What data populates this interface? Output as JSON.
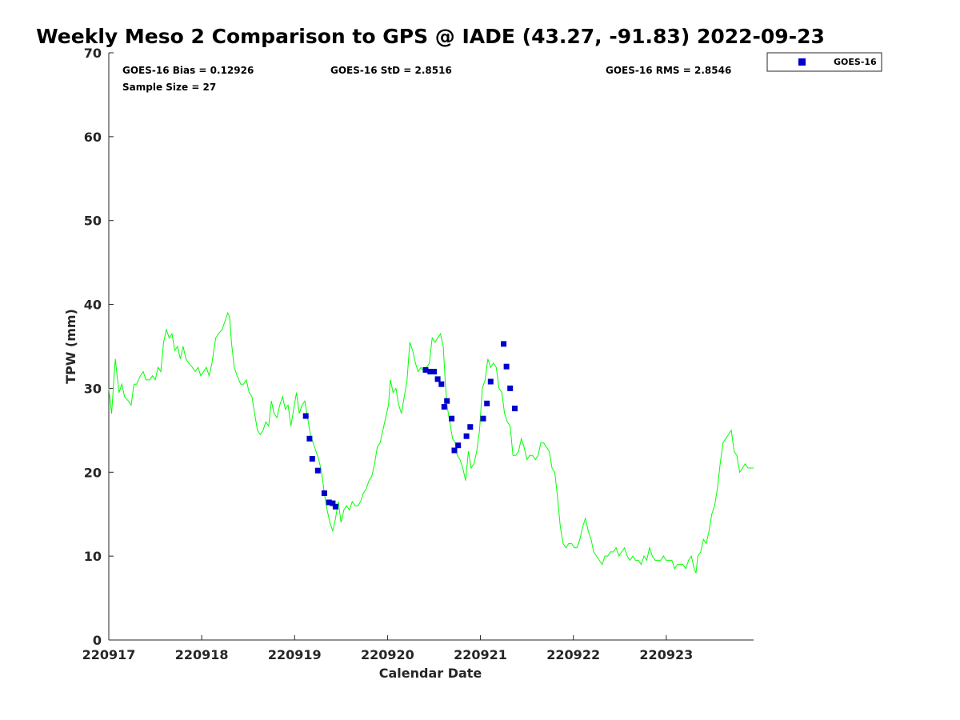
{
  "chart_data": {
    "type": "scatter",
    "title": "Weekly Meso 2 Comparison to GPS @ IADE (43.27, -91.83) 2022-09-23",
    "xlabel": "Calendar Date",
    "ylabel": "TPW (mm)",
    "x_tick_labels": [
      "220917",
      "220918",
      "220919",
      "220920",
      "220921",
      "220922",
      "220923"
    ],
    "xlim": [
      0,
      6.94
    ],
    "ylim": [
      0,
      70
    ],
    "y_ticks": [
      0,
      10,
      20,
      30,
      40,
      50,
      60,
      70
    ],
    "grid": false,
    "legend_position": "top-right",
    "stats": [
      {
        "label": "GOES-16 Bias = 0.12926"
      },
      {
        "label": "GOES-16 StD = 2.8516"
      },
      {
        "label": "GOES-16 RMS = 2.8546"
      },
      {
        "label": "Sample Size = 27"
      }
    ],
    "series": [
      {
        "name": "GPS",
        "kind": "line",
        "color": "#00ff00",
        "points": [
          [
            0.0,
            30.0
          ],
          [
            0.03,
            27.0
          ],
          [
            0.07,
            33.5
          ],
          [
            0.11,
            29.5
          ],
          [
            0.14,
            30.5
          ],
          [
            0.17,
            29.0
          ],
          [
            0.21,
            28.5
          ],
          [
            0.24,
            28.0
          ],
          [
            0.27,
            30.5
          ],
          [
            0.3,
            30.5
          ],
          [
            0.34,
            31.5
          ],
          [
            0.37,
            32.0
          ],
          [
            0.4,
            31.0
          ],
          [
            0.44,
            31.0
          ],
          [
            0.47,
            31.5
          ],
          [
            0.5,
            31.0
          ],
          [
            0.53,
            32.5
          ],
          [
            0.56,
            32.0
          ],
          [
            0.59,
            35.5
          ],
          [
            0.62,
            37.0
          ],
          [
            0.65,
            36.0
          ],
          [
            0.68,
            36.5
          ],
          [
            0.71,
            34.5
          ],
          [
            0.74,
            35.0
          ],
          [
            0.77,
            33.5
          ],
          [
            0.8,
            35.0
          ],
          [
            0.83,
            33.5
          ],
          [
            0.86,
            33.0
          ],
          [
            0.9,
            32.5
          ],
          [
            0.93,
            32.0
          ],
          [
            0.96,
            32.5
          ],
          [
            0.99,
            31.5
          ],
          [
            1.02,
            32.0
          ],
          [
            1.05,
            32.5
          ],
          [
            1.08,
            31.5
          ],
          [
            1.11,
            33.0
          ],
          [
            1.15,
            36.0
          ],
          [
            1.18,
            36.5
          ],
          [
            1.22,
            37.0
          ],
          [
            1.25,
            38.0
          ],
          [
            1.28,
            39.0
          ],
          [
            1.3,
            38.5
          ],
          [
            1.32,
            35.5
          ],
          [
            1.35,
            32.5
          ],
          [
            1.38,
            31.5
          ],
          [
            1.42,
            30.5
          ],
          [
            1.45,
            30.5
          ],
          [
            1.48,
            31.0
          ],
          [
            1.51,
            29.5
          ],
          [
            1.54,
            29.0
          ],
          [
            1.57,
            27.0
          ],
          [
            1.6,
            25.0
          ],
          [
            1.63,
            24.5
          ],
          [
            1.66,
            25.0
          ],
          [
            1.69,
            26.0
          ],
          [
            1.72,
            25.5
          ],
          [
            1.75,
            28.5
          ],
          [
            1.78,
            27.0
          ],
          [
            1.81,
            26.5
          ],
          [
            1.84,
            28.0
          ],
          [
            1.87,
            29.0
          ],
          [
            1.9,
            27.5
          ],
          [
            1.93,
            28.0
          ],
          [
            1.96,
            25.5
          ],
          [
            1.99,
            27.5
          ],
          [
            2.02,
            29.5
          ],
          [
            2.05,
            27.0
          ],
          [
            2.08,
            28.0
          ],
          [
            2.11,
            28.5
          ],
          [
            2.14,
            26.5
          ],
          [
            2.17,
            24.5
          ],
          [
            2.2,
            23.5
          ],
          [
            2.23,
            22.5
          ],
          [
            2.26,
            21.5
          ],
          [
            2.29,
            20.0
          ],
          [
            2.32,
            17.5
          ],
          [
            2.35,
            15.5
          ],
          [
            2.38,
            14.0
          ],
          [
            2.41,
            13.0
          ],
          [
            2.44,
            14.5
          ],
          [
            2.47,
            16.5
          ],
          [
            2.5,
            14.0
          ],
          [
            2.53,
            15.5
          ],
          [
            2.56,
            16.0
          ],
          [
            2.59,
            15.5
          ],
          [
            2.62,
            16.5
          ],
          [
            2.65,
            16.0
          ],
          [
            2.68,
            16.0
          ],
          [
            2.71,
            16.5
          ],
          [
            2.74,
            17.5
          ],
          [
            2.77,
            18.0
          ],
          [
            2.8,
            19.0
          ],
          [
            2.83,
            19.5
          ],
          [
            2.86,
            21.0
          ],
          [
            2.89,
            23.0
          ],
          [
            2.92,
            23.5
          ],
          [
            2.95,
            25.0
          ],
          [
            2.98,
            26.5
          ],
          [
            3.01,
            28.0
          ],
          [
            3.03,
            31.0
          ],
          [
            3.06,
            29.5
          ],
          [
            3.09,
            30.0
          ],
          [
            3.12,
            28.0
          ],
          [
            3.15,
            27.0
          ],
          [
            3.18,
            29.0
          ],
          [
            3.21,
            31.0
          ],
          [
            3.24,
            35.5
          ],
          [
            3.27,
            34.5
          ],
          [
            3.3,
            33.0
          ],
          [
            3.33,
            32.0
          ],
          [
            3.36,
            32.5
          ],
          [
            3.39,
            32.0
          ],
          [
            3.42,
            32.5
          ],
          [
            3.45,
            33.0
          ],
          [
            3.48,
            36.0
          ],
          [
            3.51,
            35.5
          ],
          [
            3.54,
            36.0
          ],
          [
            3.57,
            36.5
          ],
          [
            3.6,
            35.0
          ],
          [
            3.62,
            31.0
          ],
          [
            3.64,
            28.0
          ],
          [
            3.67,
            26.0
          ],
          [
            3.7,
            24.0
          ],
          [
            3.73,
            23.5
          ],
          [
            3.75,
            22.0
          ],
          [
            3.78,
            21.5
          ],
          [
            3.81,
            20.5
          ],
          [
            3.84,
            19.0
          ],
          [
            3.87,
            22.5
          ],
          [
            3.9,
            20.5
          ],
          [
            3.93,
            21.0
          ],
          [
            3.96,
            22.5
          ],
          [
            3.99,
            25.0
          ],
          [
            4.02,
            30.0
          ],
          [
            4.05,
            31.0
          ],
          [
            4.08,
            33.5
          ],
          [
            4.11,
            32.5
          ],
          [
            4.14,
            33.0
          ],
          [
            4.17,
            32.5
          ],
          [
            4.2,
            30.0
          ],
          [
            4.23,
            29.5
          ],
          [
            4.26,
            27.0
          ],
          [
            4.29,
            26.0
          ],
          [
            4.32,
            25.5
          ],
          [
            4.35,
            22.0
          ],
          [
            4.38,
            22.0
          ],
          [
            4.41,
            22.5
          ],
          [
            4.44,
            24.0
          ],
          [
            4.47,
            23.0
          ],
          [
            4.5,
            21.5
          ],
          [
            4.53,
            22.0
          ],
          [
            4.56,
            22.0
          ],
          [
            4.59,
            21.5
          ],
          [
            4.62,
            22.0
          ],
          [
            4.65,
            23.5
          ],
          [
            4.68,
            23.5
          ],
          [
            4.71,
            23.0
          ],
          [
            4.74,
            22.5
          ],
          [
            4.77,
            20.5
          ],
          [
            4.8,
            20.0
          ],
          [
            4.83,
            17.0
          ],
          [
            4.86,
            13.5
          ],
          [
            4.89,
            11.5
          ],
          [
            4.92,
            11.0
          ],
          [
            4.95,
            11.5
          ],
          [
            4.98,
            11.5
          ],
          [
            5.01,
            11.0
          ],
          [
            5.04,
            11.0
          ],
          [
            5.07,
            12.0
          ],
          [
            5.1,
            13.5
          ],
          [
            5.13,
            14.5
          ],
          [
            5.16,
            13.0
          ],
          [
            5.19,
            12.0
          ],
          [
            5.22,
            10.5
          ],
          [
            5.25,
            10.0
          ],
          [
            5.28,
            9.5
          ],
          [
            5.31,
            9.0
          ],
          [
            5.34,
            10.0
          ],
          [
            5.37,
            10.0
          ],
          [
            5.4,
            10.5
          ],
          [
            5.43,
            10.5
          ],
          [
            5.46,
            11.0
          ],
          [
            5.49,
            10.0
          ],
          [
            5.52,
            10.5
          ],
          [
            5.55,
            11.0
          ],
          [
            5.58,
            10.0
          ],
          [
            5.61,
            9.5
          ],
          [
            5.64,
            10.0
          ],
          [
            5.67,
            9.5
          ],
          [
            5.7,
            9.5
          ],
          [
            5.73,
            9.0
          ],
          [
            5.76,
            10.0
          ],
          [
            5.79,
            9.5
          ],
          [
            5.82,
            11.0
          ],
          [
            5.85,
            10.0
          ],
          [
            5.88,
            9.5
          ],
          [
            5.91,
            9.5
          ],
          [
            5.94,
            9.5
          ],
          [
            5.97,
            10.0
          ],
          [
            6.0,
            9.5
          ],
          [
            6.03,
            9.5
          ],
          [
            6.06,
            9.5
          ],
          [
            6.09,
            8.5
          ],
          [
            6.12,
            9.0
          ],
          [
            6.15,
            9.0
          ],
          [
            6.18,
            9.0
          ],
          [
            6.21,
            8.5
          ],
          [
            6.24,
            9.5
          ],
          [
            6.27,
            10.0
          ],
          [
            6.3,
            8.5
          ],
          [
            6.32,
            8.0
          ],
          [
            6.34,
            10.0
          ],
          [
            6.37,
            10.5
          ],
          [
            6.4,
            12.0
          ],
          [
            6.43,
            11.5
          ],
          [
            6.46,
            13.0
          ],
          [
            6.49,
            15.0
          ],
          [
            6.52,
            16.0
          ],
          [
            6.55,
            18.0
          ],
          [
            6.58,
            21.0
          ],
          [
            6.61,
            23.5
          ],
          [
            6.64,
            24.0
          ],
          [
            6.67,
            24.5
          ],
          [
            6.7,
            25.0
          ],
          [
            6.73,
            22.5
          ],
          [
            6.76,
            22.0
          ],
          [
            6.79,
            20.0
          ],
          [
            6.82,
            20.5
          ],
          [
            6.85,
            21.0
          ],
          [
            6.88,
            20.5
          ],
          [
            6.94,
            20.5
          ]
        ]
      },
      {
        "name": "GOES-16",
        "kind": "scatter",
        "color": "#0000cc",
        "points": [
          [
            2.12,
            26.7
          ],
          [
            2.16,
            24.0
          ],
          [
            2.19,
            21.6
          ],
          [
            2.25,
            20.2
          ],
          [
            2.32,
            17.5
          ],
          [
            2.37,
            16.4
          ],
          [
            2.41,
            16.3
          ],
          [
            2.44,
            15.9
          ],
          [
            3.41,
            32.2
          ],
          [
            3.46,
            32.0
          ],
          [
            3.5,
            32.0
          ],
          [
            3.54,
            31.1
          ],
          [
            3.58,
            30.5
          ],
          [
            3.61,
            27.8
          ],
          [
            3.64,
            28.5
          ],
          [
            3.69,
            26.4
          ],
          [
            3.72,
            22.6
          ],
          [
            3.76,
            23.2
          ],
          [
            3.85,
            24.3
          ],
          [
            3.89,
            25.4
          ],
          [
            4.03,
            26.4
          ],
          [
            4.07,
            28.2
          ],
          [
            4.11,
            30.8
          ],
          [
            4.25,
            35.3
          ],
          [
            4.28,
            32.6
          ],
          [
            4.32,
            30.0
          ],
          [
            4.37,
            27.6
          ]
        ]
      }
    ]
  },
  "legend": {
    "label": "GOES-16",
    "marker_color": "#0000cc"
  }
}
